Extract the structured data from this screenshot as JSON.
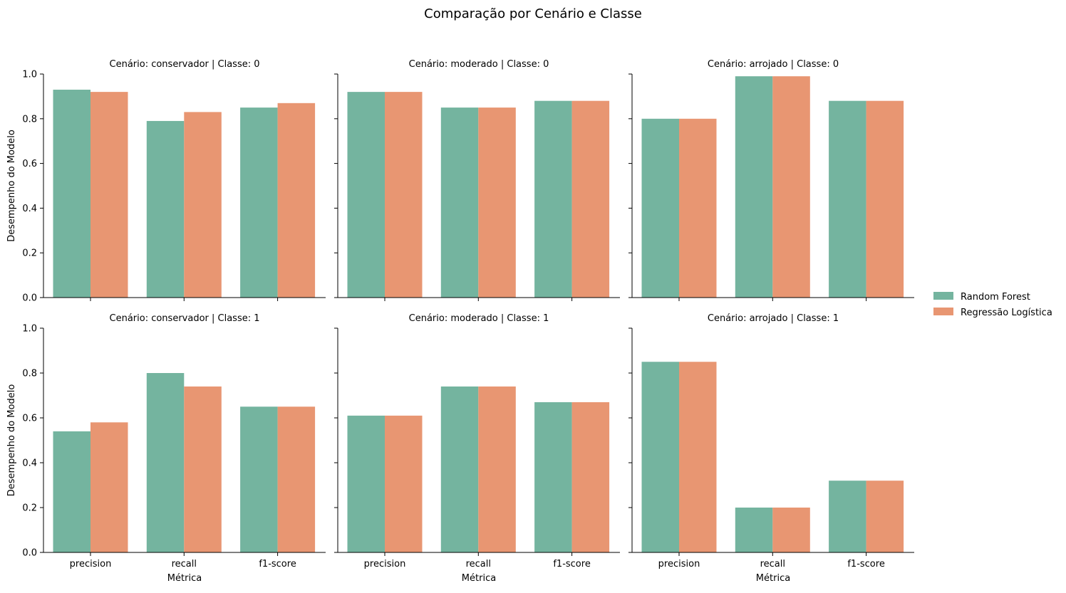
{
  "chart_data": {
    "type": "bar",
    "title": "Comparação por Cenário e Classe",
    "xlabel": "Métrica",
    "ylabel": "Desempenho do Modelo",
    "categories": [
      "precision",
      "recall",
      "f1-score"
    ],
    "ylim": [
      0,
      1.0
    ],
    "yticks": [
      0.0,
      0.2,
      0.4,
      0.6,
      0.8,
      1.0
    ],
    "ytick_labels": [
      "0.0",
      "0.2",
      "0.4",
      "0.6",
      "0.8",
      "1.0"
    ],
    "grid": false,
    "legend": {
      "placement": "right",
      "entries": [
        "Random Forest",
        "Regressão Logística"
      ]
    },
    "colors": {
      "Random Forest": "#74b49f",
      "Regressão Logística": "#e89672"
    },
    "panels": [
      {
        "title": "Cenário: conservador | Classe: 0",
        "series": [
          {
            "name": "Random Forest",
            "values": [
              0.93,
              0.79,
              0.85
            ]
          },
          {
            "name": "Regressão Logística",
            "values": [
              0.92,
              0.83,
              0.87
            ]
          }
        ]
      },
      {
        "title": "Cenário: moderado | Classe: 0",
        "series": [
          {
            "name": "Random Forest",
            "values": [
              0.92,
              0.85,
              0.88
            ]
          },
          {
            "name": "Regressão Logística",
            "values": [
              0.92,
              0.85,
              0.88
            ]
          }
        ]
      },
      {
        "title": "Cenário: arrojado | Classe: 0",
        "series": [
          {
            "name": "Random Forest",
            "values": [
              0.8,
              0.99,
              0.88
            ]
          },
          {
            "name": "Regressão Logística",
            "values": [
              0.8,
              0.99,
              0.88
            ]
          }
        ]
      },
      {
        "title": "Cenário: conservador | Classe: 1",
        "series": [
          {
            "name": "Random Forest",
            "values": [
              0.54,
              0.8,
              0.65
            ]
          },
          {
            "name": "Regressão Logística",
            "values": [
              0.58,
              0.74,
              0.65
            ]
          }
        ]
      },
      {
        "title": "Cenário: moderado | Classe: 1",
        "series": [
          {
            "name": "Random Forest",
            "values": [
              0.61,
              0.74,
              0.67
            ]
          },
          {
            "name": "Regressão Logística",
            "values": [
              0.61,
              0.74,
              0.67
            ]
          }
        ]
      },
      {
        "title": "Cenário: arrojado | Classe: 1",
        "series": [
          {
            "name": "Random Forest",
            "values": [
              0.85,
              0.2,
              0.32
            ]
          },
          {
            "name": "Regressão Logística",
            "values": [
              0.85,
              0.2,
              0.32
            ]
          }
        ]
      }
    ]
  }
}
